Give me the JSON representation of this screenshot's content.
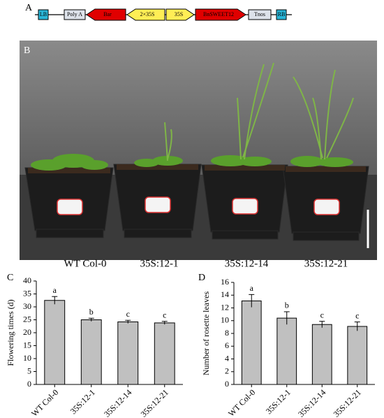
{
  "panels": {
    "a": "A",
    "b": "B",
    "c": "C",
    "d": "D"
  },
  "construct": [
    "LB",
    "Poly A",
    "Bar",
    "2×35S",
    "35S",
    "BnSWEET12",
    "Tnos",
    "RB"
  ],
  "photo_labels": [
    "WT Col-0",
    "35S:12-1",
    "35S:12-14",
    "35S:12-21"
  ],
  "chart_data": [
    {
      "type": "bar",
      "y_label": "Flowering times (d)",
      "categories": [
        "WT Col-0",
        "35S:12-1",
        "35S:12-14",
        "35S:12-21"
      ],
      "values": [
        32.5,
        25,
        24.2,
        23.8
      ],
      "errors": [
        1.5,
        0.6,
        0.6,
        0.6
      ],
      "annotations": [
        "a",
        "b",
        "c",
        "c"
      ],
      "color": "#c0c0c0",
      "ylim": [
        0,
        40
      ],
      "yticks": [
        0,
        5,
        10,
        15,
        20,
        25,
        30,
        35,
        40
      ]
    },
    {
      "type": "bar",
      "y_label": "Number of rosette leaves",
      "categories": [
        "WT Col-0",
        "35S:12-1",
        "35S:12-14",
        "35S:12-21"
      ],
      "values": [
        13.1,
        10.4,
        9.4,
        9.1
      ],
      "errors": [
        1.0,
        1.0,
        0.5,
        0.7
      ],
      "annotations": [
        "a",
        "b",
        "c",
        "c"
      ],
      "color": "#c0c0c0",
      "ylim": [
        0,
        16
      ],
      "yticks": [
        0,
        2,
        4,
        6,
        8,
        10,
        12,
        14,
        16
      ]
    }
  ]
}
